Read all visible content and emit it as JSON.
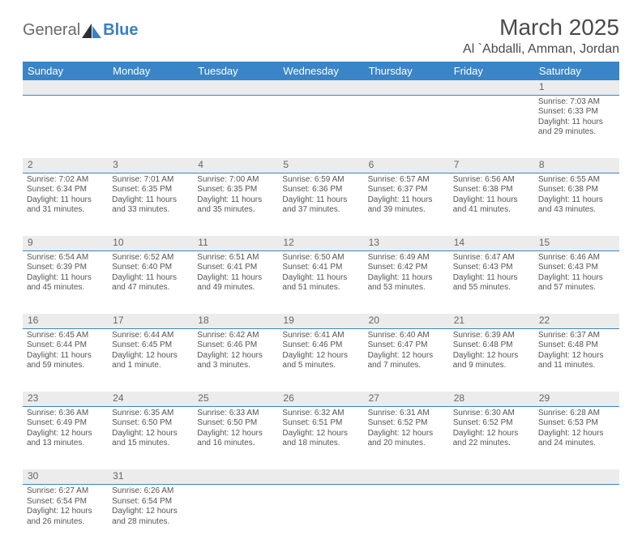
{
  "logo": {
    "word1": "General",
    "word2": "Blue"
  },
  "title": "March 2025",
  "location": "Al `Abdalli, Amman, Jordan",
  "colors": {
    "header_bg": "#3985c7",
    "header_text": "#ffffff",
    "daynum_bg": "#ececec",
    "body_text": "#555555",
    "rule": "#3985c7",
    "logo_gray": "#6a6a6a",
    "logo_blue": "#3b7fc4",
    "logo_dark": "#2a2f33"
  },
  "weekdays": [
    "Sunday",
    "Monday",
    "Tuesday",
    "Wednesday",
    "Thursday",
    "Friday",
    "Saturday"
  ],
  "first_weekday_index": 6,
  "days": [
    {
      "n": 1,
      "sunrise": "Sunrise: 7:03 AM",
      "sunset": "Sunset: 6:33 PM",
      "daylight1": "Daylight: 11 hours",
      "daylight2": "and 29 minutes."
    },
    {
      "n": 2,
      "sunrise": "Sunrise: 7:02 AM",
      "sunset": "Sunset: 6:34 PM",
      "daylight1": "Daylight: 11 hours",
      "daylight2": "and 31 minutes."
    },
    {
      "n": 3,
      "sunrise": "Sunrise: 7:01 AM",
      "sunset": "Sunset: 6:35 PM",
      "daylight1": "Daylight: 11 hours",
      "daylight2": "and 33 minutes."
    },
    {
      "n": 4,
      "sunrise": "Sunrise: 7:00 AM",
      "sunset": "Sunset: 6:35 PM",
      "daylight1": "Daylight: 11 hours",
      "daylight2": "and 35 minutes."
    },
    {
      "n": 5,
      "sunrise": "Sunrise: 6:59 AM",
      "sunset": "Sunset: 6:36 PM",
      "daylight1": "Daylight: 11 hours",
      "daylight2": "and 37 minutes."
    },
    {
      "n": 6,
      "sunrise": "Sunrise: 6:57 AM",
      "sunset": "Sunset: 6:37 PM",
      "daylight1": "Daylight: 11 hours",
      "daylight2": "and 39 minutes."
    },
    {
      "n": 7,
      "sunrise": "Sunrise: 6:56 AM",
      "sunset": "Sunset: 6:38 PM",
      "daylight1": "Daylight: 11 hours",
      "daylight2": "and 41 minutes."
    },
    {
      "n": 8,
      "sunrise": "Sunrise: 6:55 AM",
      "sunset": "Sunset: 6:38 PM",
      "daylight1": "Daylight: 11 hours",
      "daylight2": "and 43 minutes."
    },
    {
      "n": 9,
      "sunrise": "Sunrise: 6:54 AM",
      "sunset": "Sunset: 6:39 PM",
      "daylight1": "Daylight: 11 hours",
      "daylight2": "and 45 minutes."
    },
    {
      "n": 10,
      "sunrise": "Sunrise: 6:52 AM",
      "sunset": "Sunset: 6:40 PM",
      "daylight1": "Daylight: 11 hours",
      "daylight2": "and 47 minutes."
    },
    {
      "n": 11,
      "sunrise": "Sunrise: 6:51 AM",
      "sunset": "Sunset: 6:41 PM",
      "daylight1": "Daylight: 11 hours",
      "daylight2": "and 49 minutes."
    },
    {
      "n": 12,
      "sunrise": "Sunrise: 6:50 AM",
      "sunset": "Sunset: 6:41 PM",
      "daylight1": "Daylight: 11 hours",
      "daylight2": "and 51 minutes."
    },
    {
      "n": 13,
      "sunrise": "Sunrise: 6:49 AM",
      "sunset": "Sunset: 6:42 PM",
      "daylight1": "Daylight: 11 hours",
      "daylight2": "and 53 minutes."
    },
    {
      "n": 14,
      "sunrise": "Sunrise: 6:47 AM",
      "sunset": "Sunset: 6:43 PM",
      "daylight1": "Daylight: 11 hours",
      "daylight2": "and 55 minutes."
    },
    {
      "n": 15,
      "sunrise": "Sunrise: 6:46 AM",
      "sunset": "Sunset: 6:43 PM",
      "daylight1": "Daylight: 11 hours",
      "daylight2": "and 57 minutes."
    },
    {
      "n": 16,
      "sunrise": "Sunrise: 6:45 AM",
      "sunset": "Sunset: 6:44 PM",
      "daylight1": "Daylight: 11 hours",
      "daylight2": "and 59 minutes."
    },
    {
      "n": 17,
      "sunrise": "Sunrise: 6:44 AM",
      "sunset": "Sunset: 6:45 PM",
      "daylight1": "Daylight: 12 hours",
      "daylight2": "and 1 minute."
    },
    {
      "n": 18,
      "sunrise": "Sunrise: 6:42 AM",
      "sunset": "Sunset: 6:46 PM",
      "daylight1": "Daylight: 12 hours",
      "daylight2": "and 3 minutes."
    },
    {
      "n": 19,
      "sunrise": "Sunrise: 6:41 AM",
      "sunset": "Sunset: 6:46 PM",
      "daylight1": "Daylight: 12 hours",
      "daylight2": "and 5 minutes."
    },
    {
      "n": 20,
      "sunrise": "Sunrise: 6:40 AM",
      "sunset": "Sunset: 6:47 PM",
      "daylight1": "Daylight: 12 hours",
      "daylight2": "and 7 minutes."
    },
    {
      "n": 21,
      "sunrise": "Sunrise: 6:39 AM",
      "sunset": "Sunset: 6:48 PM",
      "daylight1": "Daylight: 12 hours",
      "daylight2": "and 9 minutes."
    },
    {
      "n": 22,
      "sunrise": "Sunrise: 6:37 AM",
      "sunset": "Sunset: 6:48 PM",
      "daylight1": "Daylight: 12 hours",
      "daylight2": "and 11 minutes."
    },
    {
      "n": 23,
      "sunrise": "Sunrise: 6:36 AM",
      "sunset": "Sunset: 6:49 PM",
      "daylight1": "Daylight: 12 hours",
      "daylight2": "and 13 minutes."
    },
    {
      "n": 24,
      "sunrise": "Sunrise: 6:35 AM",
      "sunset": "Sunset: 6:50 PM",
      "daylight1": "Daylight: 12 hours",
      "daylight2": "and 15 minutes."
    },
    {
      "n": 25,
      "sunrise": "Sunrise: 6:33 AM",
      "sunset": "Sunset: 6:50 PM",
      "daylight1": "Daylight: 12 hours",
      "daylight2": "and 16 minutes."
    },
    {
      "n": 26,
      "sunrise": "Sunrise: 6:32 AM",
      "sunset": "Sunset: 6:51 PM",
      "daylight1": "Daylight: 12 hours",
      "daylight2": "and 18 minutes."
    },
    {
      "n": 27,
      "sunrise": "Sunrise: 6:31 AM",
      "sunset": "Sunset: 6:52 PM",
      "daylight1": "Daylight: 12 hours",
      "daylight2": "and 20 minutes."
    },
    {
      "n": 28,
      "sunrise": "Sunrise: 6:30 AM",
      "sunset": "Sunset: 6:52 PM",
      "daylight1": "Daylight: 12 hours",
      "daylight2": "and 22 minutes."
    },
    {
      "n": 29,
      "sunrise": "Sunrise: 6:28 AM",
      "sunset": "Sunset: 6:53 PM",
      "daylight1": "Daylight: 12 hours",
      "daylight2": "and 24 minutes."
    },
    {
      "n": 30,
      "sunrise": "Sunrise: 6:27 AM",
      "sunset": "Sunset: 6:54 PM",
      "daylight1": "Daylight: 12 hours",
      "daylight2": "and 26 minutes."
    },
    {
      "n": 31,
      "sunrise": "Sunrise: 6:26 AM",
      "sunset": "Sunset: 6:54 PM",
      "daylight1": "Daylight: 12 hours",
      "daylight2": "and 28 minutes."
    }
  ]
}
